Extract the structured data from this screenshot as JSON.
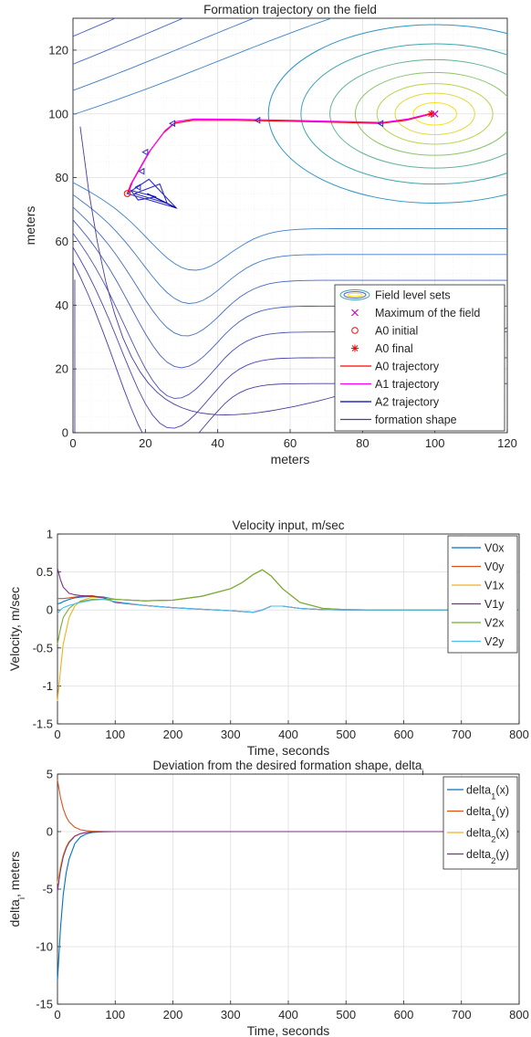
{
  "chart_data": [
    {
      "type": "line",
      "title": "Formation trajectory on the field",
      "xlabel": "meters",
      "ylabel": "meters",
      "xlim": [
        0,
        120
      ],
      "ylim": [
        0,
        130
      ],
      "xticks": [
        "0",
        "20",
        "40",
        "60",
        "80",
        "100",
        "120"
      ],
      "yticks": [
        "0",
        "20",
        "40",
        "60",
        "80",
        "100",
        "120"
      ],
      "grid": "on (major and minor)",
      "legend_position": "bottom-right",
      "field_maximum": [
        100,
        100
      ],
      "legend": [
        "Field level sets",
        "Maximum of the field",
        "A0 initial",
        "A0 final",
        "A0 trajectory",
        "A1 trajectory",
        "A2 trajectory",
        "formation shape"
      ],
      "series": [
        {
          "name": "A0 trajectory",
          "color": "#ff0000",
          "x": [
            15,
            16,
            18,
            21,
            25,
            28,
            33,
            45,
            60,
            75,
            85,
            92,
            99
          ],
          "y": [
            75,
            78,
            82,
            88,
            94,
            97,
            98,
            98,
            97.7,
            97.3,
            97,
            98,
            100
          ]
        },
        {
          "name": "A1 trajectory",
          "color": "#ff00ff",
          "x": [
            15.5,
            16.5,
            18.5,
            21.5,
            25.5,
            28.5,
            33.5,
            45.5,
            60.5,
            75.5,
            85.5,
            92.5,
            99.5
          ],
          "y": [
            75.8,
            78.8,
            82.8,
            88.8,
            94.8,
            97.6,
            98.4,
            98.3,
            98,
            97.6,
            97.3,
            98.4,
            100.3
          ]
        },
        {
          "name": "A2 trajectory",
          "color": "#0000aa",
          "x": [
            28.5,
            25,
            20.5
          ],
          "y": [
            70.5,
            72.5,
            75
          ]
        }
      ],
      "markers": [
        {
          "name": "A0 initial",
          "x": 15,
          "y": 75
        },
        {
          "name": "A0 final",
          "x": 99,
          "y": 100
        }
      ],
      "formation_shapes": [
        {
          "points": [
            [
              15,
              75
            ],
            [
              21,
              79.5
            ],
            [
              28.5,
              70.5
            ]
          ]
        },
        {
          "points": [
            [
              16,
              76
            ],
            [
              23,
              74
            ],
            [
              18,
              73
            ]
          ]
        },
        {
          "points": [
            [
              17,
              75
            ],
            [
              24,
              78
            ],
            [
              26,
              72
            ]
          ]
        }
      ]
    },
    {
      "type": "line",
      "title": "Velocity input, m/sec",
      "xlabel": "Time, seconds",
      "ylabel": "Velocity, m/sec",
      "xlim": [
        0,
        800
      ],
      "ylim": [
        -1.5,
        1
      ],
      "xticks": [
        "0",
        "100",
        "200",
        "300",
        "400",
        "500",
        "600",
        "700",
        "800"
      ],
      "yticks": [
        "-1.5",
        "-1",
        "-0.5",
        "0",
        "0.5",
        "1"
      ],
      "grid": "on",
      "legend_position": "top-right",
      "x": [
        0,
        5,
        10,
        20,
        30,
        40,
        60,
        80,
        100,
        150,
        200,
        250,
        300,
        320,
        340,
        355,
        370,
        390,
        420,
        460,
        500,
        550,
        600,
        700,
        800
      ],
      "series": [
        {
          "name": "V0x",
          "color": "#0072bd",
          "values": [
            0.08,
            0.09,
            0.11,
            0.14,
            0.16,
            0.17,
            0.18,
            0.17,
            0.14,
            0.12,
            0.13,
            0.18,
            0.28,
            0.36,
            0.47,
            0.53,
            0.45,
            0.28,
            0.1,
            0.02,
            0.005,
            0,
            0,
            0,
            0
          ]
        },
        {
          "name": "V0y",
          "color": "#d95319",
          "values": [
            0.15,
            0.15,
            0.15,
            0.16,
            0.17,
            0.18,
            0.19,
            0.16,
            0.1,
            0.06,
            0.03,
            0.01,
            -0.01,
            -0.02,
            -0.03,
            0,
            0.05,
            0.05,
            0.02,
            0.005,
            0,
            0,
            0,
            0,
            0
          ]
        },
        {
          "name": "V1x",
          "color": "#edb120",
          "values": [
            -1.2,
            -0.8,
            -0.45,
            -0.1,
            0.05,
            0.12,
            0.17,
            0.16,
            0.14,
            0.12,
            0.13,
            0.18,
            0.28,
            0.36,
            0.47,
            0.53,
            0.45,
            0.28,
            0.1,
            0.02,
            0.005,
            0,
            0,
            0,
            0
          ]
        },
        {
          "name": "V1y",
          "color": "#7e2f8e",
          "values": [
            0.55,
            0.4,
            0.3,
            0.22,
            0.2,
            0.19,
            0.18,
            0.16,
            0.1,
            0.06,
            0.03,
            0.01,
            -0.01,
            -0.02,
            -0.03,
            0,
            0.05,
            0.05,
            0.02,
            0.005,
            0,
            0,
            0,
            0,
            0
          ]
        },
        {
          "name": "V2x",
          "color": "#77ac30",
          "values": [
            -0.45,
            -0.25,
            -0.1,
            0.02,
            0.08,
            0.11,
            0.14,
            0.14,
            0.14,
            0.12,
            0.13,
            0.18,
            0.28,
            0.36,
            0.47,
            0.53,
            0.45,
            0.28,
            0.1,
            0.02,
            0.005,
            0,
            0,
            0,
            0
          ]
        },
        {
          "name": "V2y",
          "color": "#4dbeee",
          "values": [
            -0.05,
            0,
            0.03,
            0.06,
            0.08,
            0.1,
            0.13,
            0.14,
            0.11,
            0.06,
            0.03,
            0.01,
            -0.01,
            -0.02,
            -0.03,
            0,
            0.05,
            0.05,
            0.02,
            0.005,
            0,
            0,
            0,
            0,
            0
          ]
        }
      ]
    },
    {
      "type": "line",
      "title": "Deviation from the desired formation shape, delta",
      "title_subscript": "i",
      "xlabel": "Time, seconds",
      "ylabel": "delta",
      "ylabel_subscript": "i",
      "ylabel_suffix": ", meters",
      "xlim": [
        0,
        800
      ],
      "ylim": [
        -15,
        5
      ],
      "xticks": [
        "0",
        "100",
        "200",
        "300",
        "400",
        "500",
        "600",
        "700",
        "800"
      ],
      "yticks": [
        "-15",
        "-10",
        "-5",
        "0",
        "5"
      ],
      "grid": "on",
      "legend_position": "top-right",
      "x": [
        0,
        5,
        10,
        15,
        20,
        30,
        40,
        50,
        60,
        80,
        100,
        200,
        400,
        600,
        800
      ],
      "series": [
        {
          "name": "delta",
          "sub": "1",
          "arg": "(x)",
          "color": "#0072bd",
          "values": [
            -13,
            -8.5,
            -5.5,
            -3.6,
            -2.4,
            -1.05,
            -0.45,
            -0.2,
            -0.08,
            -0.01,
            0,
            0,
            0,
            0,
            0
          ]
        },
        {
          "name": "delta",
          "sub": "1",
          "arg": "(y)",
          "color": "#d95319",
          "values": [
            4.5,
            3,
            2,
            1.3,
            0.85,
            0.37,
            0.16,
            0.07,
            0.03,
            0.005,
            0,
            0,
            0,
            0,
            0
          ]
        },
        {
          "name": "delta",
          "sub": "2",
          "arg": "(x)",
          "color": "#edb120",
          "values": [
            -4.5,
            -3,
            -2,
            -1.3,
            -0.85,
            -0.37,
            -0.16,
            -0.07,
            -0.03,
            -0.005,
            0,
            0,
            0,
            0,
            0
          ]
        },
        {
          "name": "delta",
          "sub": "2",
          "arg": "(y)",
          "color": "#7e2f8e",
          "values": [
            -5.2,
            -3.4,
            -2.2,
            -1.45,
            -0.95,
            -0.4,
            -0.18,
            -0.08,
            -0.03,
            -0.005,
            0,
            0,
            0,
            0,
            0
          ]
        }
      ]
    }
  ]
}
